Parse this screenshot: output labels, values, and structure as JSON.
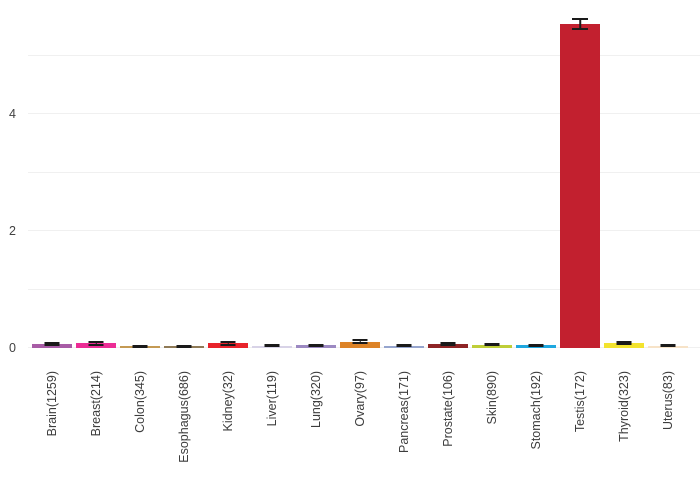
{
  "chart_data": {
    "type": "bar",
    "title": "",
    "xlabel": "",
    "ylabel": "",
    "categories": [
      "Brain(1259)",
      "Breast(214)",
      "Colon(345)",
      "Esophagus(686)",
      "Kidney(32)",
      "Liver(119)",
      "Lung(320)",
      "Ovary(97)",
      "Pancreas(171)",
      "Prostate(106)",
      "Skin(890)",
      "Stomach(192)",
      "Testis(172)",
      "Thyroid(323)",
      "Uterus(83)"
    ],
    "values": [
      0.07,
      0.08,
      0.03,
      0.03,
      0.08,
      0.04,
      0.05,
      0.11,
      0.04,
      0.07,
      0.06,
      0.05,
      5.54,
      0.09,
      0.04
    ],
    "errors": [
      0.02,
      0.02,
      0.01,
      0.01,
      0.03,
      0.01,
      0.01,
      0.02,
      0.01,
      0.02,
      0.01,
      0.01,
      0.08,
      0.02,
      0.01
    ],
    "colors": [
      "#A85CA6",
      "#EC2C95",
      "#C49A53",
      "#8F7A56",
      "#E8232B",
      "#D8D3E7",
      "#9C89C2",
      "#DD8327",
      "#96A5CE",
      "#8E2425",
      "#BFCE38",
      "#1FA8E0",
      "#C2202F",
      "#F3E32E",
      "#F7E3C8"
    ],
    "yticks": [
      0,
      2,
      4
    ],
    "gridline_values": [
      0,
      1,
      2,
      3,
      4,
      5
    ],
    "ylim": [
      0,
      5.95
    ],
    "legend_position": "none",
    "grid": "horizontal",
    "grid_color": "#f0f0f0",
    "error_bar_color": "#1a1a1a",
    "background_color": "#ffffff",
    "tick_label_color": "#424242"
  }
}
